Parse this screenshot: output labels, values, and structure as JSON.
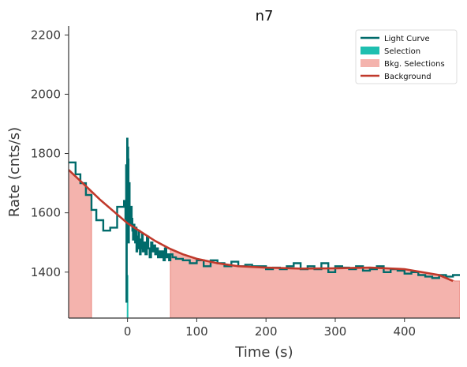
{
  "chart_data": {
    "type": "line",
    "title": "n7",
    "xlabel": "Time (s)",
    "ylabel": "Rate (cnts/s)",
    "xlim": [
      -85,
      480
    ],
    "ylim": [
      1245,
      2230
    ],
    "xticks": [
      "0",
      "100",
      "200",
      "300",
      "400"
    ],
    "xtick_values": [
      0,
      100,
      200,
      300,
      400
    ],
    "yticks": [
      "1400",
      "1600",
      "1800",
      "2000",
      "2200"
    ],
    "ytick_values": [
      1400,
      1600,
      1800,
      2000,
      2200
    ],
    "grid": false,
    "legend_position": "top-right",
    "colors": {
      "light_curve": "#006b6b",
      "selection": "#1fbfb0",
      "bkg_selection_fill": "#f4b3ad",
      "bkg_selection_edge": "#e8837a",
      "background": "#c0392b"
    },
    "legend": [
      {
        "label": "Light Curve",
        "kind": "line",
        "color": "#006b6b"
      },
      {
        "label": "Selection",
        "kind": "patch",
        "color": "#1fbfb0"
      },
      {
        "label": "Bkg. Selections",
        "kind": "patch",
        "color": "#f4b3ad"
      },
      {
        "label": "Background",
        "kind": "line",
        "color": "#c0392b"
      }
    ],
    "series": [
      {
        "name": "Light Curve",
        "style": "step",
        "x": [
          -85,
          -75,
          -68,
          -60,
          -52,
          -45,
          -35,
          -25,
          -15,
          -5,
          -3,
          -2,
          -1.5,
          -1,
          -0.5,
          0,
          0.5,
          1,
          1.5,
          2,
          3,
          4,
          5,
          6,
          7,
          8,
          9,
          10,
          11,
          12,
          13,
          14,
          15,
          16,
          17,
          18,
          19,
          20,
          21,
          22,
          24,
          26,
          28,
          30,
          32,
          34,
          36,
          38,
          40,
          42,
          44,
          46,
          48,
          50,
          52,
          54,
          56,
          58,
          60,
          62,
          65,
          70,
          80,
          90,
          100,
          110,
          120,
          130,
          140,
          150,
          160,
          170,
          180,
          190,
          200,
          210,
          220,
          230,
          240,
          250,
          260,
          270,
          280,
          290,
          300,
          310,
          320,
          330,
          340,
          350,
          360,
          370,
          380,
          390,
          400,
          410,
          420,
          430,
          440,
          450,
          460,
          470,
          480
        ],
        "y": [
          1770,
          1730,
          1700,
          1660,
          1610,
          1575,
          1540,
          1550,
          1620,
          1640,
          1580,
          1760,
          1300,
          1720,
          1850,
          1640,
          1820,
          1780,
          1500,
          1700,
          1600,
          1560,
          1620,
          1580,
          1540,
          1510,
          1560,
          1530,
          1500,
          1550,
          1470,
          1520,
          1480,
          1540,
          1500,
          1460,
          1510,
          1480,
          1530,
          1470,
          1500,
          1460,
          1520,
          1480,
          1450,
          1500,
          1470,
          1490,
          1460,
          1480,
          1450,
          1470,
          1450,
          1470,
          1440,
          1480,
          1450,
          1460,
          1440,
          1460,
          1450,
          1445,
          1440,
          1430,
          1440,
          1420,
          1440,
          1430,
          1420,
          1435,
          1420,
          1425,
          1420,
          1420,
          1410,
          1415,
          1410,
          1420,
          1430,
          1410,
          1420,
          1410,
          1430,
          1400,
          1420,
          1415,
          1410,
          1420,
          1405,
          1410,
          1420,
          1400,
          1410,
          1405,
          1395,
          1400,
          1390,
          1385,
          1380,
          1390,
          1385,
          1390,
          1390
        ]
      },
      {
        "name": "Background",
        "style": "line",
        "x": [
          -85,
          -60,
          -40,
          -20,
          0,
          20,
          40,
          60,
          80,
          100,
          130,
          160,
          200,
          250,
          300,
          350,
          400,
          450,
          470
        ],
        "y": [
          1745,
          1690,
          1645,
          1605,
          1565,
          1535,
          1505,
          1480,
          1460,
          1445,
          1430,
          1420,
          1415,
          1412,
          1413,
          1415,
          1410,
          1390,
          1370
        ]
      }
    ],
    "selection": {
      "x": [
        -1,
        1
      ]
    },
    "bkg_selections": [
      [
        -85,
        -52
      ],
      [
        62,
        480
      ]
    ]
  }
}
